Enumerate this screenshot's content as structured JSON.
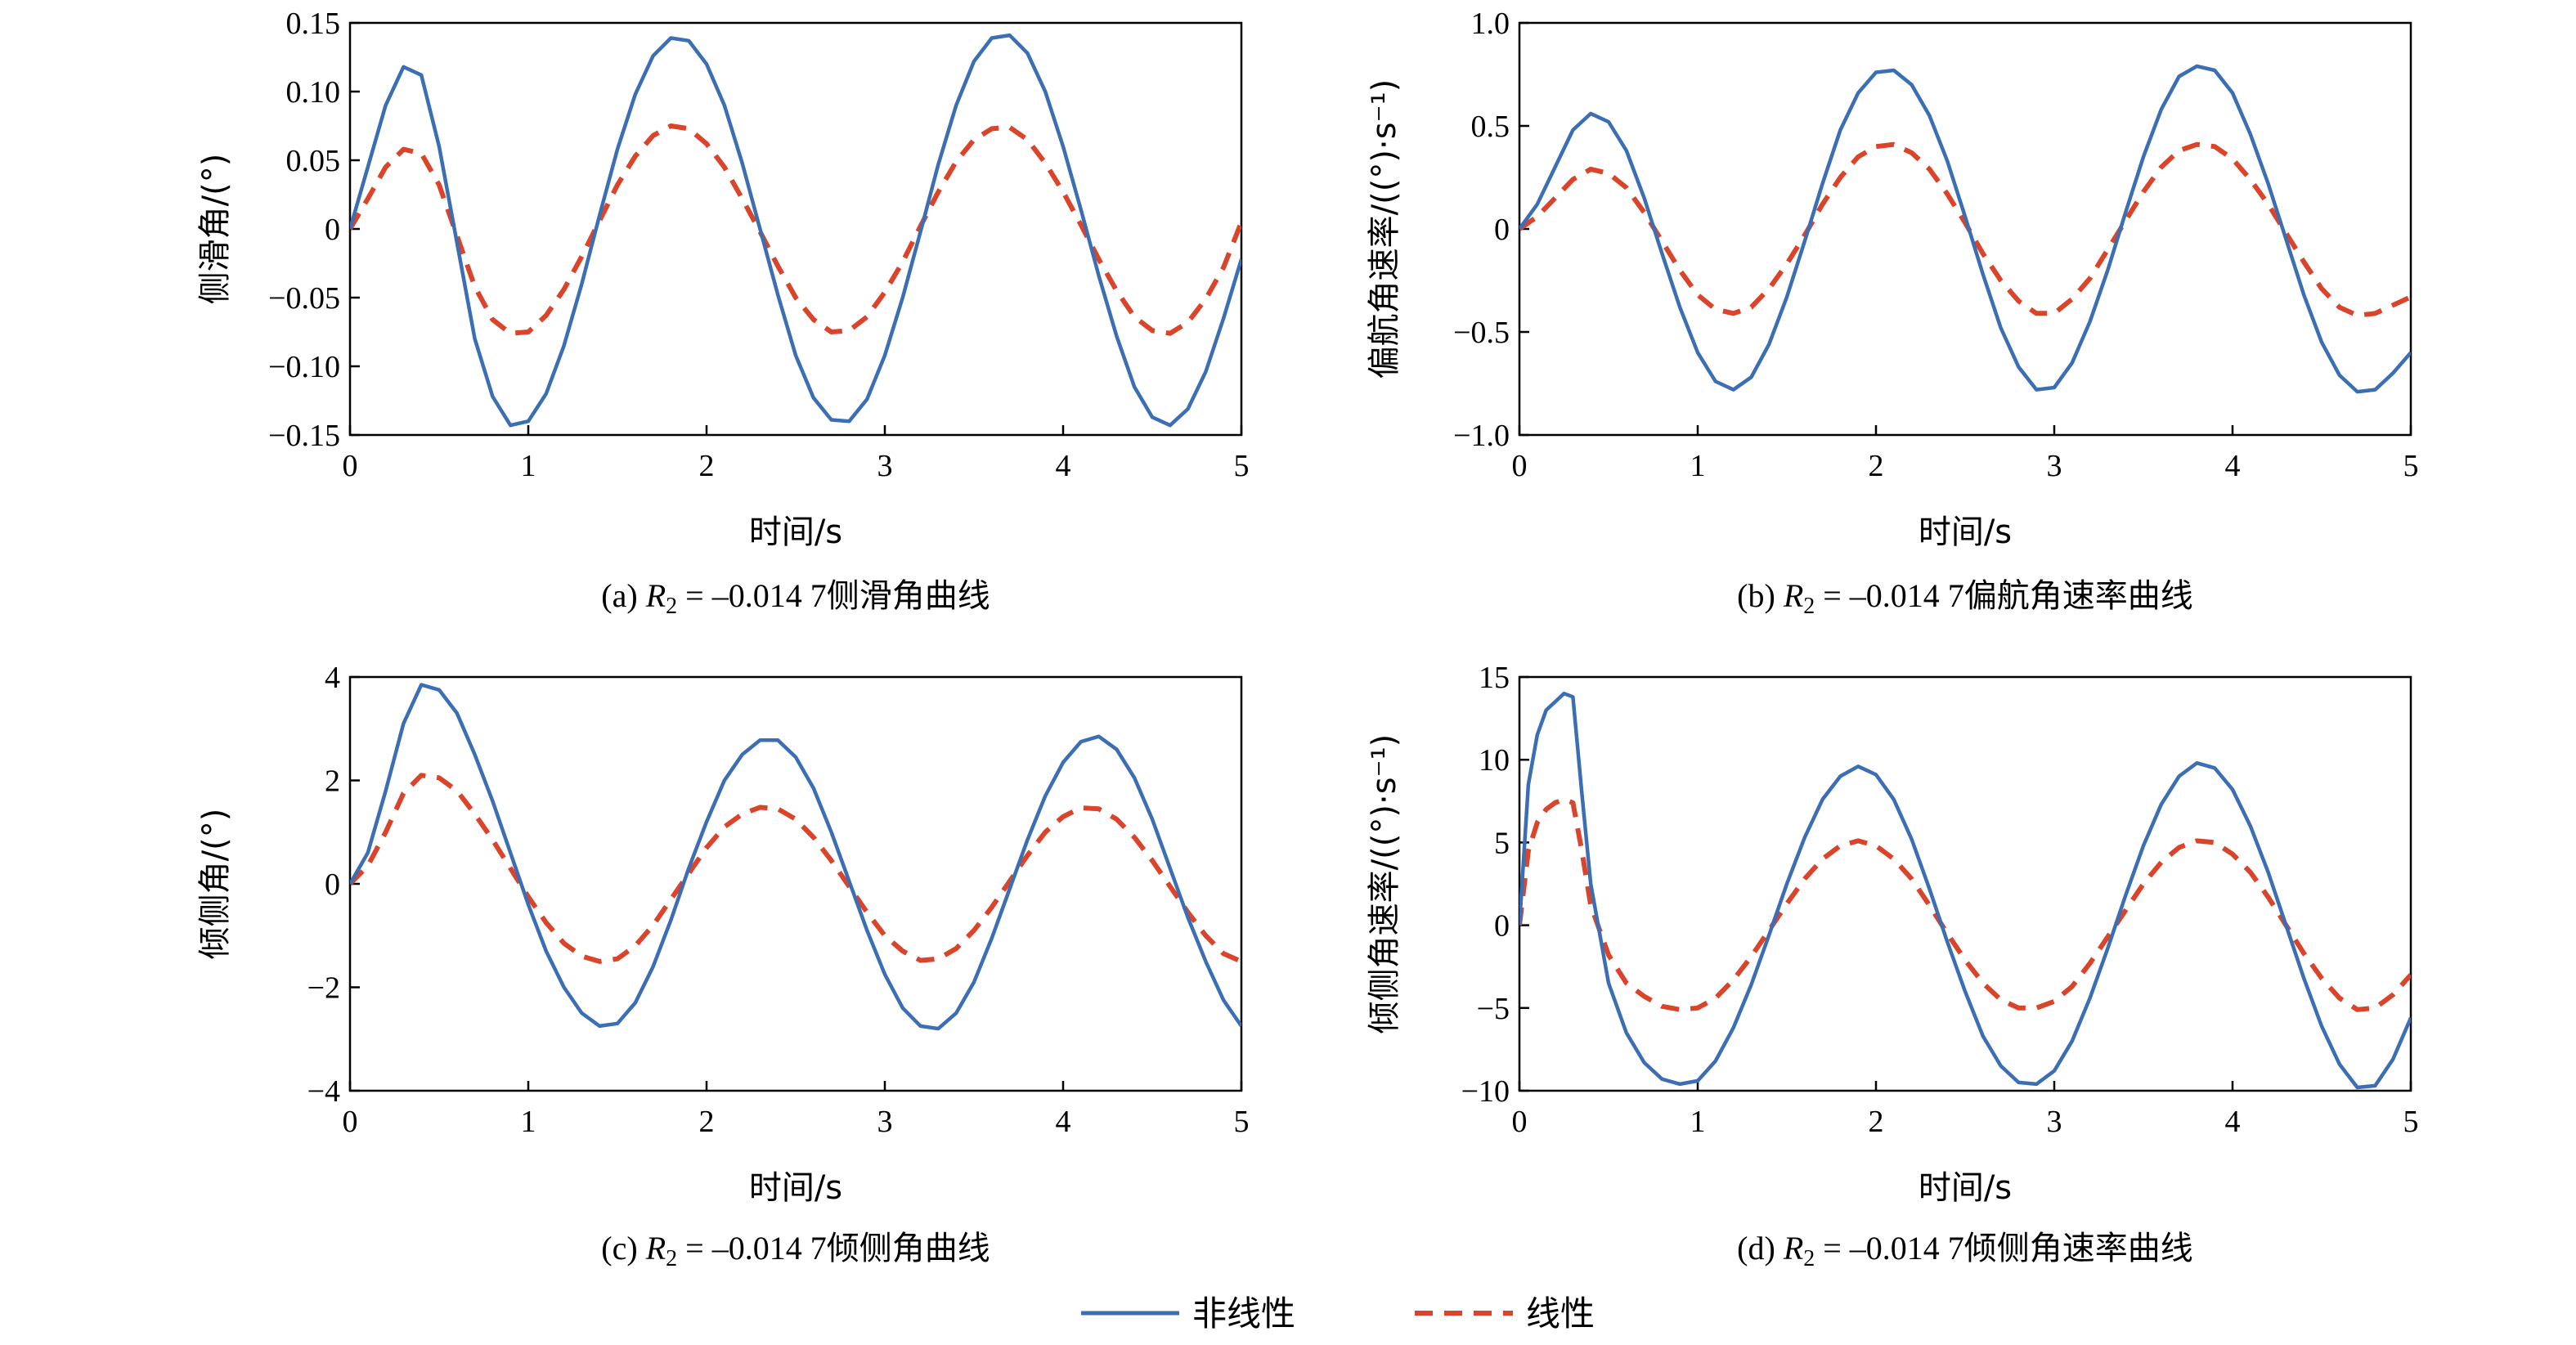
{
  "colors": {
    "nonlinear": "#3c6eb4",
    "linear": "#d9442b",
    "axis": "#000000"
  },
  "legend": {
    "nonlinear_label": "非线性",
    "linear_label": "线性",
    "placement": "bottom-center"
  },
  "chart_data": [
    {
      "type": "line",
      "caption": "(a) R2 = –0.014 7侧滑角曲线",
      "caption_parts": {
        "prefix": "(a) ",
        "var": "R",
        "sub": "2",
        "rest": " = –0.014 7侧滑角曲线"
      },
      "xlabel": "时间/s",
      "ylabel": "侧滑角/(°)",
      "xlim": [
        0,
        5
      ],
      "ylim": [
        -0.15,
        0.15
      ],
      "xticks": [
        0,
        1,
        2,
        3,
        4,
        5
      ],
      "yticks": [
        -0.15,
        -0.1,
        -0.05,
        0,
        0.05,
        0.1,
        0.15
      ],
      "ytick_labels": [
        "−0.15",
        "−0.10",
        "−0.05",
        "0",
        "0.05",
        "0.10",
        "0.15"
      ],
      "grid": false,
      "series": [
        {
          "name": "非线性",
          "style": "solid",
          "x": [
            0,
            0.1,
            0.2,
            0.3,
            0.4,
            0.5,
            0.6,
            0.7,
            0.8,
            0.9,
            1.0,
            1.1,
            1.2,
            1.3,
            1.4,
            1.5,
            1.6,
            1.7,
            1.8,
            1.9,
            2.0,
            2.1,
            2.2,
            2.3,
            2.4,
            2.5,
            2.6,
            2.7,
            2.8,
            2.9,
            3.0,
            3.1,
            3.2,
            3.3,
            3.4,
            3.5,
            3.6,
            3.7,
            3.8,
            3.9,
            4.0,
            4.1,
            4.2,
            4.3,
            4.4,
            4.5,
            4.6,
            4.7,
            4.8,
            4.9,
            5.0
          ],
          "y": [
            0,
            0.045,
            0.09,
            0.118,
            0.112,
            0.06,
            -0.01,
            -0.08,
            -0.122,
            -0.143,
            -0.14,
            -0.12,
            -0.085,
            -0.04,
            0.01,
            0.058,
            0.098,
            0.126,
            0.139,
            0.137,
            0.12,
            0.09,
            0.048,
            0.0,
            -0.048,
            -0.092,
            -0.123,
            -0.139,
            -0.14,
            -0.124,
            -0.092,
            -0.05,
            -0.002,
            0.047,
            0.09,
            0.122,
            0.139,
            0.141,
            0.128,
            0.1,
            0.06,
            0.014,
            -0.034,
            -0.078,
            -0.115,
            -0.137,
            -0.143,
            -0.131,
            -0.104,
            -0.065,
            -0.022
          ]
        },
        {
          "name": "线性",
          "style": "dashed",
          "x": [
            0,
            0.1,
            0.2,
            0.3,
            0.4,
            0.5,
            0.6,
            0.7,
            0.8,
            0.9,
            1.0,
            1.1,
            1.2,
            1.3,
            1.4,
            1.5,
            1.6,
            1.7,
            1.8,
            1.9,
            2.0,
            2.1,
            2.2,
            2.3,
            2.4,
            2.5,
            2.6,
            2.7,
            2.8,
            2.9,
            3.0,
            3.1,
            3.2,
            3.3,
            3.4,
            3.5,
            3.6,
            3.7,
            3.8,
            3.9,
            4.0,
            4.1,
            4.2,
            4.3,
            4.4,
            4.5,
            4.6,
            4.7,
            4.8,
            4.9,
            5.0
          ],
          "y": [
            0,
            0.022,
            0.045,
            0.058,
            0.055,
            0.032,
            -0.005,
            -0.042,
            -0.066,
            -0.076,
            -0.075,
            -0.063,
            -0.044,
            -0.02,
            0.006,
            0.032,
            0.053,
            0.068,
            0.075,
            0.073,
            0.062,
            0.045,
            0.022,
            -0.002,
            -0.027,
            -0.05,
            -0.066,
            -0.075,
            -0.074,
            -0.064,
            -0.046,
            -0.024,
            0.002,
            0.027,
            0.049,
            0.065,
            0.073,
            0.074,
            0.065,
            0.048,
            0.027,
            0.003,
            -0.022,
            -0.045,
            -0.064,
            -0.074,
            -0.076,
            -0.068,
            -0.051,
            -0.028,
            0.005
          ]
        }
      ]
    },
    {
      "type": "line",
      "caption": "(b) R2 = –0.014 7偏航角速率曲线",
      "caption_parts": {
        "prefix": "(b) ",
        "var": "R",
        "sub": "2",
        "rest": " = –0.014 7偏航角速率曲线"
      },
      "xlabel": "时间/s",
      "ylabel": "偏航角速率/((°)·s⁻¹)",
      "xlim": [
        0,
        5
      ],
      "ylim": [
        -1.0,
        1.0
      ],
      "xticks": [
        0,
        1,
        2,
        3,
        4,
        5
      ],
      "yticks": [
        -1.0,
        -0.5,
        0,
        0.5,
        1.0
      ],
      "ytick_labels": [
        "−1.0",
        "−0.5",
        "0",
        "0.5",
        "1.0"
      ],
      "grid": false,
      "series": [
        {
          "name": "非线性",
          "style": "solid",
          "x": [
            0,
            0.1,
            0.2,
            0.3,
            0.4,
            0.5,
            0.6,
            0.7,
            0.8,
            0.9,
            1.0,
            1.1,
            1.2,
            1.3,
            1.4,
            1.5,
            1.6,
            1.7,
            1.8,
            1.9,
            2.0,
            2.1,
            2.2,
            2.3,
            2.4,
            2.5,
            2.6,
            2.7,
            2.8,
            2.9,
            3.0,
            3.1,
            3.2,
            3.3,
            3.4,
            3.5,
            3.6,
            3.7,
            3.8,
            3.9,
            4.0,
            4.1,
            4.2,
            4.3,
            4.4,
            4.5,
            4.6,
            4.7,
            4.8,
            4.9,
            5.0
          ],
          "y": [
            0,
            0.12,
            0.3,
            0.48,
            0.56,
            0.52,
            0.38,
            0.15,
            -0.12,
            -0.38,
            -0.6,
            -0.74,
            -0.78,
            -0.72,
            -0.56,
            -0.33,
            -0.06,
            0.22,
            0.48,
            0.66,
            0.76,
            0.77,
            0.7,
            0.55,
            0.33,
            0.06,
            -0.22,
            -0.48,
            -0.67,
            -0.78,
            -0.77,
            -0.65,
            -0.45,
            -0.2,
            0.08,
            0.35,
            0.58,
            0.74,
            0.79,
            0.77,
            0.66,
            0.46,
            0.22,
            -0.05,
            -0.32,
            -0.55,
            -0.71,
            -0.79,
            -0.78,
            -0.7,
            -0.6
          ]
        },
        {
          "name": "线性",
          "style": "dashed",
          "x": [
            0,
            0.1,
            0.2,
            0.3,
            0.4,
            0.5,
            0.6,
            0.7,
            0.8,
            0.9,
            1.0,
            1.1,
            1.2,
            1.3,
            1.4,
            1.5,
            1.6,
            1.7,
            1.8,
            1.9,
            2.0,
            2.1,
            2.2,
            2.3,
            2.4,
            2.5,
            2.6,
            2.7,
            2.8,
            2.9,
            3.0,
            3.1,
            3.2,
            3.3,
            3.4,
            3.5,
            3.6,
            3.7,
            3.8,
            3.9,
            4.0,
            4.1,
            4.2,
            4.3,
            4.4,
            4.5,
            4.6,
            4.7,
            4.8,
            4.9,
            5.0
          ],
          "y": [
            0,
            0.06,
            0.15,
            0.24,
            0.29,
            0.27,
            0.2,
            0.08,
            -0.06,
            -0.2,
            -0.32,
            -0.39,
            -0.41,
            -0.38,
            -0.29,
            -0.17,
            -0.03,
            0.12,
            0.25,
            0.35,
            0.4,
            0.41,
            0.37,
            0.29,
            0.17,
            0.03,
            -0.12,
            -0.25,
            -0.35,
            -0.41,
            -0.41,
            -0.34,
            -0.24,
            -0.1,
            0.04,
            0.18,
            0.3,
            0.38,
            0.41,
            0.4,
            0.34,
            0.24,
            0.12,
            -0.02,
            -0.16,
            -0.29,
            -0.38,
            -0.42,
            -0.41,
            -0.37,
            -0.33
          ]
        }
      ]
    },
    {
      "type": "line",
      "caption": "(c) R2 = –0.014 7倾侧角曲线",
      "caption_parts": {
        "prefix": "(c) ",
        "var": "R",
        "sub": "2",
        "rest": " = –0.014 7倾侧角曲线"
      },
      "xlabel": "时间/s",
      "ylabel": "倾侧角/(°)",
      "xlim": [
        0,
        5
      ],
      "ylim": [
        -4,
        4
      ],
      "xticks": [
        0,
        1,
        2,
        3,
        4,
        5
      ],
      "yticks": [
        -4,
        -2,
        0,
        2,
        4
      ],
      "ytick_labels": [
        "−4",
        "−2",
        "0",
        "2",
        "4"
      ],
      "grid": false,
      "series": [
        {
          "name": "非线性",
          "style": "solid",
          "x": [
            0,
            0.1,
            0.2,
            0.3,
            0.4,
            0.5,
            0.6,
            0.7,
            0.8,
            0.9,
            1.0,
            1.1,
            1.2,
            1.3,
            1.4,
            1.5,
            1.6,
            1.7,
            1.8,
            1.9,
            2.0,
            2.1,
            2.2,
            2.3,
            2.4,
            2.5,
            2.6,
            2.7,
            2.8,
            2.9,
            3.0,
            3.1,
            3.2,
            3.3,
            3.4,
            3.5,
            3.6,
            3.7,
            3.8,
            3.9,
            4.0,
            4.1,
            4.2,
            4.3,
            4.4,
            4.5,
            4.6,
            4.7,
            4.8,
            4.9,
            5.0
          ],
          "y": [
            0,
            0.6,
            1.8,
            3.1,
            3.85,
            3.75,
            3.3,
            2.5,
            1.6,
            0.6,
            -0.4,
            -1.3,
            -2.0,
            -2.5,
            -2.75,
            -2.7,
            -2.3,
            -1.6,
            -0.7,
            0.3,
            1.2,
            2.0,
            2.5,
            2.78,
            2.78,
            2.45,
            1.85,
            1.0,
            0.05,
            -0.9,
            -1.75,
            -2.4,
            -2.75,
            -2.8,
            -2.5,
            -1.9,
            -1.05,
            -0.1,
            0.85,
            1.7,
            2.35,
            2.75,
            2.85,
            2.6,
            2.05,
            1.25,
            0.3,
            -0.65,
            -1.5,
            -2.25,
            -2.75
          ]
        },
        {
          "name": "线性",
          "style": "dashed",
          "x": [
            0,
            0.1,
            0.2,
            0.3,
            0.4,
            0.5,
            0.6,
            0.7,
            0.8,
            0.9,
            1.0,
            1.1,
            1.2,
            1.3,
            1.4,
            1.5,
            1.6,
            1.7,
            1.8,
            1.9,
            2.0,
            2.1,
            2.2,
            2.3,
            2.4,
            2.5,
            2.6,
            2.7,
            2.8,
            2.9,
            3.0,
            3.1,
            3.2,
            3.3,
            3.4,
            3.5,
            3.6,
            3.7,
            3.8,
            3.9,
            4.0,
            4.1,
            4.2,
            4.3,
            4.4,
            4.5,
            4.6,
            4.7,
            4.8,
            4.9,
            5.0
          ],
          "y": [
            0,
            0.35,
            1.0,
            1.75,
            2.1,
            2.05,
            1.8,
            1.35,
            0.85,
            0.3,
            -0.25,
            -0.75,
            -1.15,
            -1.4,
            -1.5,
            -1.45,
            -1.2,
            -0.8,
            -0.3,
            0.2,
            0.7,
            1.1,
            1.35,
            1.48,
            1.45,
            1.25,
            0.9,
            0.45,
            -0.05,
            -0.55,
            -1.0,
            -1.3,
            -1.48,
            -1.45,
            -1.25,
            -0.9,
            -0.45,
            0.05,
            0.55,
            1.0,
            1.3,
            1.47,
            1.45,
            1.25,
            0.9,
            0.45,
            -0.05,
            -0.55,
            -1.0,
            -1.35,
            -1.5
          ]
        }
      ]
    },
    {
      "type": "line",
      "caption": "(d) R2 = –0.014 7倾侧角速率曲线",
      "caption_parts": {
        "prefix": "(d) ",
        "var": "R",
        "sub": "2",
        "rest": " = –0.014 7倾侧角速率曲线"
      },
      "xlabel": "时间/s",
      "ylabel": "倾侧角速率/((°)·s⁻¹)",
      "xlim": [
        0,
        5
      ],
      "ylim": [
        -10,
        15
      ],
      "xticks": [
        0,
        1,
        2,
        3,
        4,
        5
      ],
      "yticks": [
        -10,
        -5,
        0,
        5,
        10,
        15
      ],
      "ytick_labels": [
        "−10",
        "−5",
        "0",
        "5",
        "10",
        "15"
      ],
      "grid": false,
      "series": [
        {
          "name": "非线性",
          "style": "solid",
          "x": [
            0,
            0.05,
            0.1,
            0.15,
            0.2,
            0.25,
            0.3,
            0.35,
            0.4,
            0.5,
            0.6,
            0.7,
            0.8,
            0.9,
            1.0,
            1.1,
            1.2,
            1.3,
            1.4,
            1.5,
            1.6,
            1.7,
            1.8,
            1.9,
            2.0,
            2.1,
            2.2,
            2.3,
            2.4,
            2.5,
            2.6,
            2.7,
            2.8,
            2.9,
            3.0,
            3.1,
            3.2,
            3.3,
            3.4,
            3.5,
            3.6,
            3.7,
            3.8,
            3.9,
            4.0,
            4.1,
            4.2,
            4.3,
            4.4,
            4.5,
            4.6,
            4.7,
            4.8,
            4.9,
            5.0
          ],
          "y": [
            0,
            8.5,
            11.5,
            13.0,
            13.5,
            14.0,
            13.8,
            8.0,
            2.5,
            -3.5,
            -6.5,
            -8.3,
            -9.3,
            -9.6,
            -9.4,
            -8.2,
            -6.2,
            -3.6,
            -0.6,
            2.5,
            5.3,
            7.6,
            9.0,
            9.6,
            9.1,
            7.6,
            5.2,
            2.2,
            -1.0,
            -4.0,
            -6.7,
            -8.5,
            -9.5,
            -9.6,
            -8.8,
            -7.0,
            -4.4,
            -1.4,
            1.8,
            4.8,
            7.3,
            9.0,
            9.8,
            9.5,
            8.2,
            6.0,
            3.2,
            0.0,
            -3.2,
            -6.1,
            -8.4,
            -9.8,
            -9.7,
            -8.1,
            -5.6
          ]
        },
        {
          "name": "线性",
          "style": "dashed",
          "x": [
            0,
            0.05,
            0.1,
            0.15,
            0.2,
            0.25,
            0.3,
            0.35,
            0.4,
            0.5,
            0.6,
            0.7,
            0.8,
            0.9,
            1.0,
            1.1,
            1.2,
            1.3,
            1.4,
            1.5,
            1.6,
            1.7,
            1.8,
            1.9,
            2.0,
            2.1,
            2.2,
            2.3,
            2.4,
            2.5,
            2.6,
            2.7,
            2.8,
            2.9,
            3.0,
            3.1,
            3.2,
            3.3,
            3.4,
            3.5,
            3.6,
            3.7,
            3.8,
            3.9,
            4.0,
            4.1,
            4.2,
            4.3,
            4.4,
            4.5,
            4.6,
            4.7,
            4.8,
            4.9,
            5.0
          ],
          "y": [
            0,
            4.5,
            6.2,
            7.0,
            7.4,
            7.6,
            7.4,
            4.5,
            1.2,
            -1.8,
            -3.5,
            -4.3,
            -4.9,
            -5.1,
            -5.0,
            -4.4,
            -3.3,
            -1.9,
            -0.3,
            1.3,
            2.8,
            4.0,
            4.8,
            5.1,
            4.8,
            4.0,
            2.8,
            1.2,
            -0.5,
            -2.1,
            -3.5,
            -4.5,
            -5.0,
            -5.0,
            -4.6,
            -3.7,
            -2.3,
            -0.7,
            0.9,
            2.5,
            3.8,
            4.7,
            5.1,
            5.0,
            4.3,
            3.2,
            1.7,
            0.0,
            -1.7,
            -3.2,
            -4.4,
            -5.1,
            -5.0,
            -4.2,
            -3.0
          ]
        }
      ]
    }
  ]
}
